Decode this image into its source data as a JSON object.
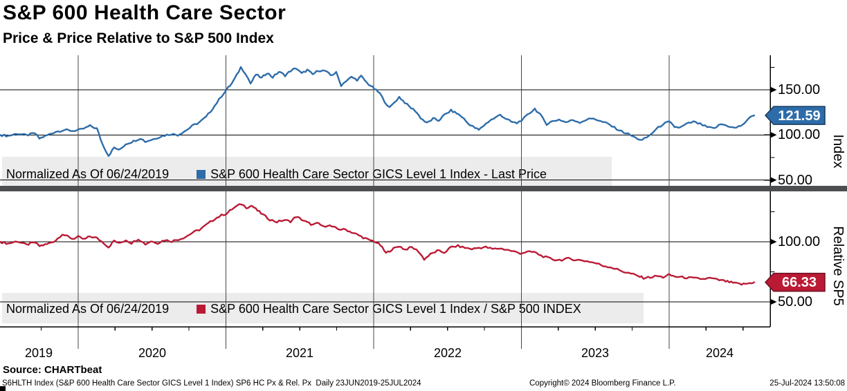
{
  "header": {
    "title": "S&P 600 Health Care Sector",
    "subtitle": "Price & Price Relative to S&P 500 Index"
  },
  "top_panel": {
    "axis_title": "Index",
    "ticks": [
      "150.00",
      "100.00",
      "50.00"
    ],
    "last_price_label": "121.59",
    "legend": {
      "normalized": "Normalized As Of 06/24/2019",
      "series_label": "S&P 600 Health Care Sector GICS Level 1 Index - Last Price"
    }
  },
  "bottom_panel": {
    "axis_title": "Relative SP5",
    "ticks": [
      "100.00",
      "50.00"
    ],
    "last_price_label": "66.33",
    "legend": {
      "normalized": "Normalized As Of 06/24/2019",
      "series_label": "S&P 600 Health Care Sector GICS Level 1 Index / S&P 500 INDEX"
    }
  },
  "x_axis": {
    "years": [
      "2019",
      "2020",
      "2021",
      "2022",
      "2023",
      "2024"
    ]
  },
  "footer": {
    "source": "Source: CHARTbeat",
    "description": "S6HLTH Index (S&P 600 Health Care Sector GICS Level 1 Index) SP6 HC Px & Rel. Px  Daily 23JUN2019-25JUL2024",
    "copyright": "Copyright© 2024 Bloomberg Finance L.P.",
    "datetime": "25-Jul-2024 13:50:08"
  },
  "colors": {
    "index_line": "#2d6ca9",
    "index_tag_border": "#17395c",
    "relative_line": "#ba1a34",
    "relative_tag_border": "#6d0f20",
    "legend_bg": "#ececec",
    "divider": "#4d4e50",
    "grid": "#000000",
    "year_line": "#444444"
  },
  "chart_data": [
    {
      "type": "line",
      "panel": "top",
      "title": "S&P 600 Health Care Sector GICS Level 1 Index - Last Price",
      "normalized_as_of": "06/24/2019",
      "x_unit": "decimal_year",
      "x_range": [
        2019.471,
        2024.576
      ],
      "ylim": [
        46,
        188
      ],
      "yticks": [
        150,
        100,
        50
      ],
      "yticks_minor": [
        175,
        125,
        75
      ],
      "last_value": 121.59,
      "legend_position": "bottom-inside",
      "grid": true,
      "points": [
        [
          2019.471,
          100
        ],
        [
          2019.527,
          99
        ],
        [
          2019.588,
          101.5
        ],
        [
          2019.649,
          99.5
        ],
        [
          2019.705,
          102
        ],
        [
          2019.738,
          96
        ],
        [
          2019.789,
          99.5
        ],
        [
          2019.846,
          103.5
        ],
        [
          2019.907,
          105.5
        ],
        [
          2019.963,
          104.5
        ],
        [
          2020.024,
          106
        ],
        [
          2020.08,
          110
        ],
        [
          2020.127,
          107
        ],
        [
          2020.164,
          90
        ],
        [
          2020.206,
          77
        ],
        [
          2020.244,
          86
        ],
        [
          2020.277,
          83
        ],
        [
          2020.323,
          90
        ],
        [
          2020.375,
          93
        ],
        [
          2020.422,
          96.5
        ],
        [
          2020.455,
          92.5
        ],
        [
          2020.511,
          95.5
        ],
        [
          2020.572,
          99
        ],
        [
          2020.628,
          101
        ],
        [
          2020.675,
          100
        ],
        [
          2020.726,
          104.5
        ],
        [
          2020.773,
          110
        ],
        [
          2020.82,
          114
        ],
        [
          2020.867,
          120
        ],
        [
          2020.923,
          132
        ],
        [
          2020.97,
          143
        ],
        [
          2021.003,
          150
        ],
        [
          2021.04,
          157
        ],
        [
          2021.073,
          166
        ],
        [
          2021.101,
          175
        ],
        [
          2021.134,
          168
        ],
        [
          2021.167,
          157
        ],
        [
          2021.204,
          167
        ],
        [
          2021.242,
          163
        ],
        [
          2021.279,
          169
        ],
        [
          2021.317,
          164
        ],
        [
          2021.359,
          170
        ],
        [
          2021.401,
          166
        ],
        [
          2021.438,
          171
        ],
        [
          2021.476,
          174
        ],
        [
          2021.513,
          168
        ],
        [
          2021.551,
          172
        ],
        [
          2021.588,
          167
        ],
        [
          2021.626,
          171.5
        ],
        [
          2021.672,
          171
        ],
        [
          2021.71,
          166
        ],
        [
          2021.747,
          169
        ],
        [
          2021.78,
          155
        ],
        [
          2021.813,
          160
        ],
        [
          2021.85,
          164
        ],
        [
          2021.888,
          161
        ],
        [
          2021.916,
          165
        ],
        [
          2021.953,
          158
        ],
        [
          2022.005,
          151
        ],
        [
          2022.042,
          146
        ],
        [
          2022.075,
          137
        ],
        [
          2022.108,
          130
        ],
        [
          2022.14,
          136
        ],
        [
          2022.173,
          142
        ],
        [
          2022.211,
          136
        ],
        [
          2022.243,
          131
        ],
        [
          2022.281,
          127
        ],
        [
          2022.318,
          119
        ],
        [
          2022.36,
          113
        ],
        [
          2022.403,
          118
        ],
        [
          2022.44,
          116
        ],
        [
          2022.478,
          122
        ],
        [
          2022.524,
          127
        ],
        [
          2022.562,
          124
        ],
        [
          2022.599,
          120
        ],
        [
          2022.637,
          113
        ],
        [
          2022.674,
          109
        ],
        [
          2022.712,
          105.5
        ],
        [
          2022.749,
          111
        ],
        [
          2022.787,
          116
        ],
        [
          2022.824,
          119
        ],
        [
          2022.857,
          122.5
        ],
        [
          2022.894,
          118
        ],
        [
          2022.932,
          114.5
        ],
        [
          2022.969,
          113
        ],
        [
          2023.016,
          118
        ],
        [
          2023.054,
          124
        ],
        [
          2023.091,
          129
        ],
        [
          2023.129,
          122
        ],
        [
          2023.171,
          112
        ],
        [
          2023.208,
          115
        ],
        [
          2023.255,
          117
        ],
        [
          2023.302,
          114
        ],
        [
          2023.349,
          116.5
        ],
        [
          2023.396,
          114
        ],
        [
          2023.442,
          117
        ],
        [
          2023.489,
          118.5
        ],
        [
          2023.536,
          115
        ],
        [
          2023.583,
          112.5
        ],
        [
          2023.63,
          108
        ],
        [
          2023.677,
          104
        ],
        [
          2023.723,
          101
        ],
        [
          2023.77,
          97
        ],
        [
          2023.817,
          94
        ],
        [
          2023.864,
          99
        ],
        [
          2023.911,
          106
        ],
        [
          2023.958,
          112
        ],
        [
          2024.0,
          114.5
        ],
        [
          2024.037,
          109
        ],
        [
          2024.075,
          108
        ],
        [
          2024.117,
          112
        ],
        [
          2024.164,
          114.5
        ],
        [
          2024.211,
          112
        ],
        [
          2024.258,
          108.5
        ],
        [
          2024.304,
          107
        ],
        [
          2024.351,
          112
        ],
        [
          2024.398,
          110
        ],
        [
          2024.445,
          107.5
        ],
        [
          2024.482,
          110
        ],
        [
          2024.52,
          114
        ],
        [
          2024.553,
          121
        ],
        [
          2024.576,
          121.59
        ]
      ]
    },
    {
      "type": "line",
      "panel": "bottom",
      "title": "S&P 600 Health Care Sector GICS Level 1 Index / S&P 500 INDEX",
      "normalized_as_of": "06/24/2019",
      "x_unit": "decimal_year",
      "x_range": [
        2019.471,
        2024.576
      ],
      "ylim": [
        44,
        142
      ],
      "yticks": [
        100,
        50
      ],
      "yticks_minor": [
        125,
        75
      ],
      "last_value": 66.33,
      "legend_position": "bottom-inside",
      "grid": true,
      "points": [
        [
          2019.471,
          100
        ],
        [
          2019.527,
          98.5
        ],
        [
          2019.588,
          100.5
        ],
        [
          2019.649,
          97.5
        ],
        [
          2019.705,
          99.5
        ],
        [
          2019.738,
          96.5
        ],
        [
          2019.789,
          98
        ],
        [
          2019.846,
          101
        ],
        [
          2019.893,
          106.5
        ],
        [
          2019.925,
          104.5
        ],
        [
          2019.963,
          102.5
        ],
        [
          2020.0,
          104
        ],
        [
          2020.042,
          102
        ],
        [
          2020.08,
          104.5
        ],
        [
          2020.127,
          103
        ],
        [
          2020.174,
          99
        ],
        [
          2020.206,
          95.5
        ],
        [
          2020.244,
          101
        ],
        [
          2020.277,
          98.5
        ],
        [
          2020.323,
          101.5
        ],
        [
          2020.361,
          99
        ],
        [
          2020.408,
          102.5
        ],
        [
          2020.455,
          98
        ],
        [
          2020.492,
          100.5
        ],
        [
          2020.539,
          99
        ],
        [
          2020.586,
          101.5
        ],
        [
          2020.633,
          100.5
        ],
        [
          2020.679,
          102
        ],
        [
          2020.726,
          104
        ],
        [
          2020.773,
          107.5
        ],
        [
          2020.82,
          110
        ],
        [
          2020.867,
          114
        ],
        [
          2020.923,
          119
        ],
        [
          2020.97,
          122
        ],
        [
          2021.003,
          123.5
        ],
        [
          2021.04,
          127
        ],
        [
          2021.073,
          129.5
        ],
        [
          2021.106,
          131.5
        ],
        [
          2021.139,
          128.5
        ],
        [
          2021.176,
          130
        ],
        [
          2021.214,
          126
        ],
        [
          2021.251,
          122.5
        ],
        [
          2021.298,
          118.5
        ],
        [
          2021.345,
          116.5
        ],
        [
          2021.392,
          118
        ],
        [
          2021.438,
          117
        ],
        [
          2021.476,
          121
        ],
        [
          2021.513,
          118.5
        ],
        [
          2021.551,
          116
        ],
        [
          2021.588,
          114
        ],
        [
          2021.626,
          115.5
        ],
        [
          2021.658,
          112.5
        ],
        [
          2021.691,
          114
        ],
        [
          2021.729,
          112
        ],
        [
          2021.766,
          110.5
        ],
        [
          2021.813,
          110
        ],
        [
          2021.85,
          108
        ],
        [
          2021.888,
          106
        ],
        [
          2021.93,
          103.5
        ],
        [
          2021.967,
          101.5
        ],
        [
          2022.005,
          100.5
        ],
        [
          2022.047,
          97
        ],
        [
          2022.084,
          90.5
        ],
        [
          2022.122,
          93.5
        ],
        [
          2022.173,
          96.5
        ],
        [
          2022.211,
          93.5
        ],
        [
          2022.258,
          95.5
        ],
        [
          2022.304,
          92
        ],
        [
          2022.342,
          85.5
        ],
        [
          2022.384,
          89.5
        ],
        [
          2022.431,
          92.5
        ],
        [
          2022.478,
          91
        ],
        [
          2022.524,
          95.5
        ],
        [
          2022.571,
          96.5
        ],
        [
          2022.618,
          95
        ],
        [
          2022.665,
          94
        ],
        [
          2022.712,
          95
        ],
        [
          2022.758,
          95.5
        ],
        [
          2022.805,
          94
        ],
        [
          2022.852,
          94.5
        ],
        [
          2022.899,
          93.5
        ],
        [
          2022.946,
          92
        ],
        [
          2022.993,
          90.5
        ],
        [
          2023.039,
          91.5
        ],
        [
          2023.086,
          91.5
        ],
        [
          2023.133,
          88.5
        ],
        [
          2023.18,
          86.5
        ],
        [
          2023.227,
          85
        ],
        [
          2023.274,
          85
        ],
        [
          2023.321,
          86
        ],
        [
          2023.367,
          85
        ],
        [
          2023.414,
          84.5
        ],
        [
          2023.461,
          83.5
        ],
        [
          2023.508,
          82
        ],
        [
          2023.555,
          80
        ],
        [
          2023.602,
          79
        ],
        [
          2023.649,
          77
        ],
        [
          2023.695,
          75
        ],
        [
          2023.742,
          73.5
        ],
        [
          2023.789,
          71.5
        ],
        [
          2023.826,
          70
        ],
        [
          2023.873,
          70.5
        ],
        [
          2023.92,
          71.5
        ],
        [
          2023.958,
          70.5
        ],
        [
          2024.0,
          72.5
        ],
        [
          2024.042,
          71
        ],
        [
          2024.089,
          70.5
        ],
        [
          2024.135,
          70
        ],
        [
          2024.182,
          69.5
        ],
        [
          2024.229,
          69
        ],
        [
          2024.276,
          69.8
        ],
        [
          2024.323,
          68.5
        ],
        [
          2024.37,
          67.5
        ],
        [
          2024.407,
          66.5
        ],
        [
          2024.445,
          65.5
        ],
        [
          2024.491,
          64.6
        ],
        [
          2024.529,
          65.2
        ],
        [
          2024.576,
          66.33
        ]
      ]
    }
  ]
}
